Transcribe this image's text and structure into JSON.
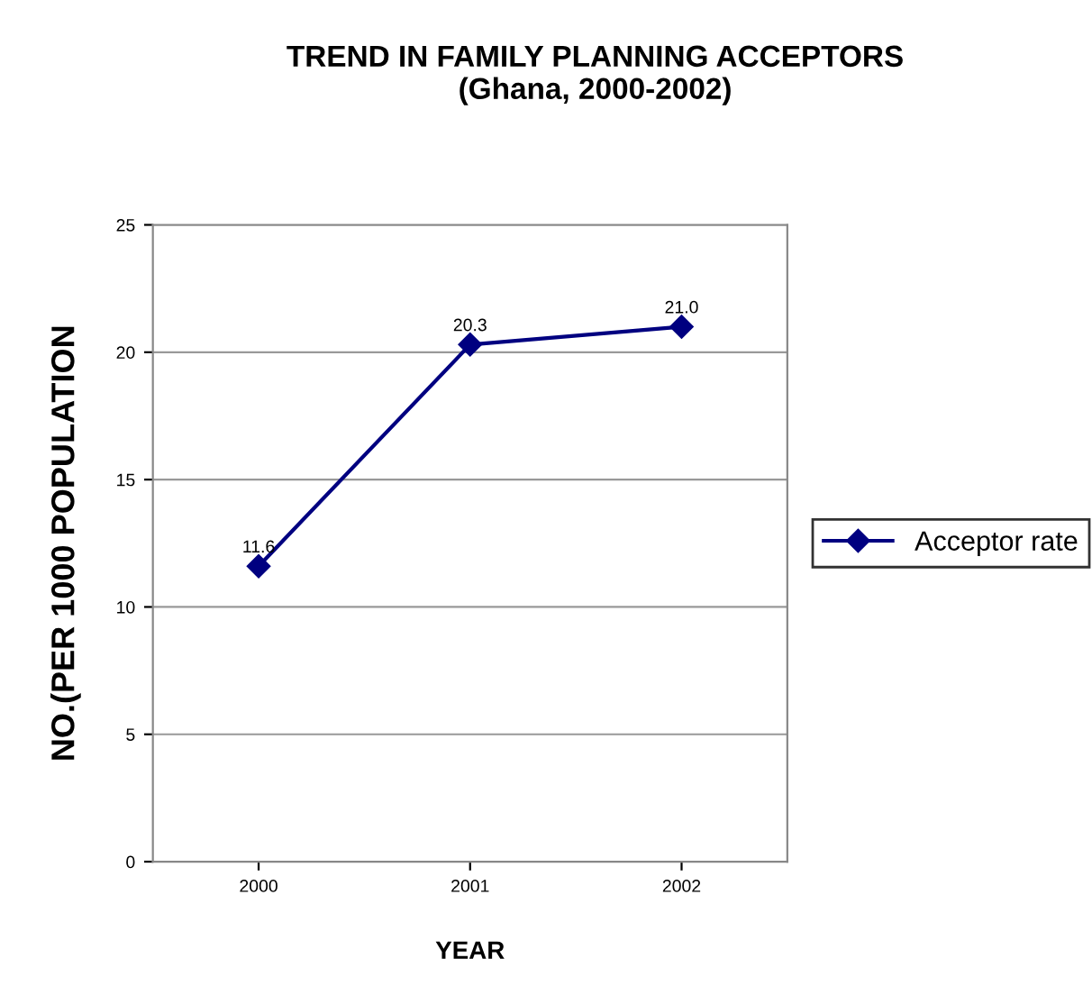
{
  "chart_data": {
    "type": "line",
    "title": "TREND IN FAMILY PLANNING ACCEPTORS\n(Ghana, 2000-2002)",
    "xlabel": "YEAR",
    "ylabel": "NO.(PER 1000 POPULATION",
    "categories": [
      "2000",
      "2001",
      "2002"
    ],
    "series": [
      {
        "name": "Acceptor rate",
        "color": "#000080",
        "values": [
          11.6,
          20.3,
          21.0
        ],
        "value_labels": [
          "11.6",
          "20.3",
          "21.0"
        ]
      }
    ],
    "ylim": [
      0,
      25
    ],
    "yticks": [
      0,
      5,
      10,
      15,
      20,
      25
    ],
    "grid": "y",
    "legend": "right",
    "marker": "diamond",
    "line_style": "solid"
  }
}
